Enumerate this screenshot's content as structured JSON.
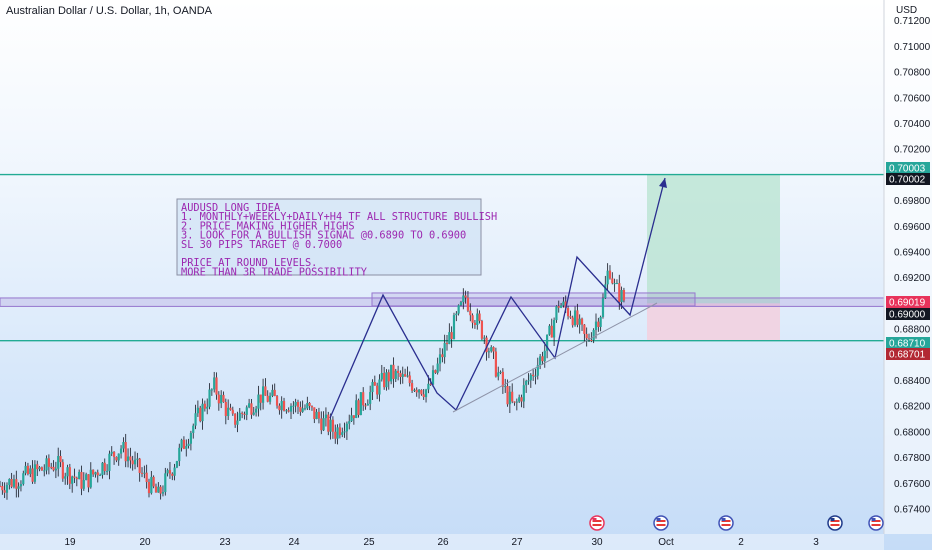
{
  "title": "Australian Dollar / U.S. Dollar, 1h, OANDA",
  "currency_label": "USD",
  "colors": {
    "up": "#26a69a",
    "down": "#ef5350",
    "wick": "#131722",
    "drawing": "#2a2e8f",
    "note": "#9c27b0",
    "target_line": "#22ab94",
    "zone": "#9575cd",
    "profit_fill": "#b7e3cf",
    "loss_fill": "#f3d0de",
    "target_tag": "#26a69a",
    "stop_tag": "#b22833",
    "zone_tag": "#e8335b",
    "axis_tag": "#131722"
  },
  "note": {
    "lines": [
      "AUDUSD LONG IDEA",
      "1. MONTHLY+WEEKLY+DAILY+H4 TF ALL STRUCTURE BULLISH",
      "2. PRICE MAKING HIGHER HIGHS",
      "3. LOOK FOR A BULLISH SIGNAL @0.6890 TO 0.6900",
      "SL 30 PIPS TARGET @ 0.7000",
      "",
      "PRICE AT ROUND LEVELS.",
      "MORE THAN 3R TRADE POSSIBILITY"
    ]
  },
  "chart_data": {
    "type": "candlestick",
    "title": "Australian Dollar / U.S. Dollar, 1h, OANDA",
    "y_unit": "USD",
    "ylim": [
      0.673,
      0.713
    ],
    "x_ticks": [
      "19",
      "20",
      "23",
      "24",
      "25",
      "26",
      "27",
      "30",
      "Oct",
      "2",
      "3"
    ],
    "y_ticks": [
      "0.67400",
      "0.67600",
      "0.67800",
      "0.68000",
      "0.68200",
      "0.68400",
      "0.68600",
      "0.68800",
      "0.69000",
      "0.69200",
      "0.69400",
      "0.69600",
      "0.69800",
      "0.70000",
      "0.70200",
      "0.70400",
      "0.70600",
      "0.70800",
      "0.71000",
      "0.71200"
    ],
    "price_tags": [
      {
        "label": "0.70003",
        "value": 0.70003,
        "kind": "target"
      },
      {
        "label": "0.70002",
        "value": 0.70002,
        "kind": "axis"
      },
      {
        "label": "0.69019",
        "value": 0.69019,
        "kind": "zone"
      },
      {
        "label": "0.69000",
        "value": 0.69,
        "kind": "axis"
      },
      {
        "label": "0.68710",
        "value": 0.6871,
        "kind": "target"
      },
      {
        "label": "0.68701",
        "value": 0.68701,
        "kind": "stop"
      }
    ],
    "horizontal_lines": [
      0.70003,
      0.6871
    ],
    "zone": {
      "top": 0.69019,
      "bottom": 0.69
    },
    "position": {
      "entry": 0.69,
      "target": 0.70003,
      "stop": 0.6871
    },
    "candles_sampled": [
      {
        "x": 0.0,
        "c": 0.6758
      },
      {
        "x": 3.0,
        "c": 0.6775
      },
      {
        "x": 4.5,
        "c": 0.676
      },
      {
        "x": 6.5,
        "c": 0.6788
      },
      {
        "x": 8.5,
        "c": 0.675
      },
      {
        "x": 10.0,
        "c": 0.6795
      },
      {
        "x": 11.5,
        "c": 0.6835
      },
      {
        "x": 12.5,
        "c": 0.6808
      },
      {
        "x": 14.0,
        "c": 0.6828
      },
      {
        "x": 16.5,
        "c": 0.6818
      },
      {
        "x": 18.0,
        "c": 0.68
      },
      {
        "x": 19.5,
        "c": 0.6825
      },
      {
        "x": 21.0,
        "c": 0.6845
      },
      {
        "x": 23.0,
        "c": 0.6832
      },
      {
        "x": 24.0,
        "c": 0.687
      },
      {
        "x": 25.0,
        "c": 0.6905
      },
      {
        "x": 25.3,
        "c": 0.6895
      },
      {
        "x": 26.0,
        "c": 0.6875
      },
      {
        "x": 27.0,
        "c": 0.6835
      },
      {
        "x": 27.6,
        "c": 0.6818
      },
      {
        "x": 28.3,
        "c": 0.6838
      },
      {
        "x": 29.3,
        "c": 0.6865
      },
      {
        "x": 30.0,
        "c": 0.69
      },
      {
        "x": 30.7,
        "c": 0.6892
      },
      {
        "x": 31.5,
        "c": 0.687
      },
      {
        "x": 32.3,
        "c": 0.6895
      },
      {
        "x": 32.7,
        "c": 0.693
      },
      {
        "x": 33.0,
        "c": 0.6912
      },
      {
        "x": 33.5,
        "c": 0.6903
      }
    ]
  }
}
